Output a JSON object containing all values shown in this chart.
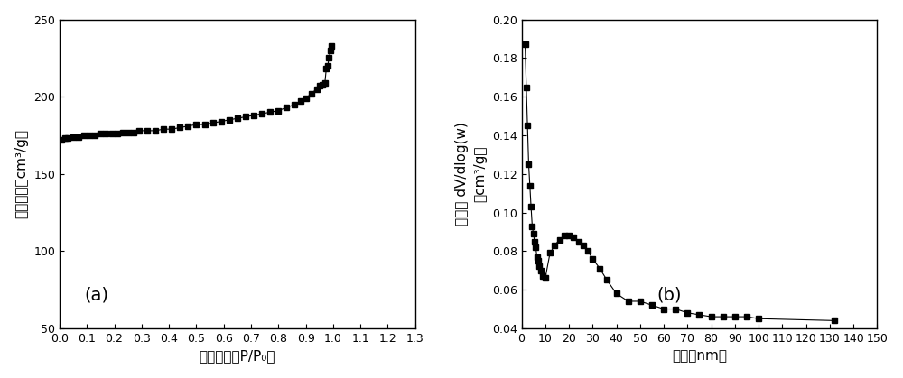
{
  "plot_a": {
    "xlabel": "相对压力（P/P₀）",
    "ylabel": "吸附体积（cm³/g）",
    "label": "(a)",
    "xlim": [
      0.0,
      1.3
    ],
    "ylim": [
      50,
      250
    ],
    "xticks": [
      0.0,
      0.1,
      0.2,
      0.3,
      0.4,
      0.5,
      0.6,
      0.7,
      0.8,
      0.9,
      1.0,
      1.1,
      1.2,
      1.3
    ],
    "yticks": [
      50,
      100,
      150,
      200,
      250
    ],
    "x": [
      0.007,
      0.02,
      0.03,
      0.05,
      0.07,
      0.09,
      0.11,
      0.13,
      0.15,
      0.17,
      0.19,
      0.21,
      0.23,
      0.25,
      0.27,
      0.29,
      0.32,
      0.35,
      0.38,
      0.41,
      0.44,
      0.47,
      0.5,
      0.53,
      0.56,
      0.59,
      0.62,
      0.65,
      0.68,
      0.71,
      0.74,
      0.77,
      0.8,
      0.83,
      0.86,
      0.88,
      0.9,
      0.92,
      0.94,
      0.95,
      0.96,
      0.97,
      0.975,
      0.98,
      0.985,
      0.99,
      0.993
    ],
    "y": [
      172,
      173,
      173,
      174,
      174,
      175,
      175,
      175,
      176,
      176,
      176,
      176,
      177,
      177,
      177,
      178,
      178,
      178,
      179,
      179,
      180,
      181,
      182,
      182,
      183,
      184,
      185,
      186,
      187,
      188,
      189,
      190,
      191,
      193,
      195,
      197,
      199,
      202,
      205,
      207,
      208,
      209,
      218,
      220,
      225,
      230,
      233
    ]
  },
  "plot_b": {
    "xlabel": "孔径（nm）",
    "ylabel_line1": "孔体积 dV/dlog(w)",
    "ylabel_line2": "（cm³/g）",
    "label": "(b)",
    "xlim": [
      0,
      150
    ],
    "ylim": [
      0.04,
      0.2
    ],
    "xticks": [
      0,
      10,
      20,
      30,
      40,
      50,
      60,
      70,
      80,
      90,
      100,
      110,
      120,
      130,
      140,
      150
    ],
    "yticks": [
      0.04,
      0.06,
      0.08,
      0.1,
      0.12,
      0.14,
      0.16,
      0.18,
      0.2
    ],
    "x": [
      1.5,
      2.0,
      2.5,
      3.0,
      3.5,
      4.0,
      4.5,
      5.0,
      5.5,
      6.0,
      6.5,
      7.0,
      7.5,
      8.0,
      9.0,
      10.0,
      12.0,
      14.0,
      16.0,
      18.0,
      20.0,
      22.0,
      24.0,
      26.0,
      28.0,
      30.0,
      33.0,
      36.0,
      40.0,
      45.0,
      50.0,
      55.0,
      60.0,
      65.0,
      70.0,
      75.0,
      80.0,
      85.0,
      90.0,
      95.0,
      100.0,
      132.0
    ],
    "y": [
      0.187,
      0.165,
      0.145,
      0.125,
      0.114,
      0.103,
      0.093,
      0.089,
      0.085,
      0.082,
      0.077,
      0.075,
      0.072,
      0.07,
      0.067,
      0.066,
      0.079,
      0.083,
      0.086,
      0.088,
      0.088,
      0.087,
      0.085,
      0.083,
      0.08,
      0.076,
      0.071,
      0.065,
      0.058,
      0.054,
      0.054,
      0.052,
      0.05,
      0.05,
      0.048,
      0.047,
      0.046,
      0.046,
      0.046,
      0.046,
      0.045,
      0.044
    ]
  },
  "line_color": "#000000",
  "marker": "s",
  "markersize": 4.5,
  "linewidth": 0.8,
  "background_color": "#ffffff",
  "font_color": "#000000",
  "label_fontsize": 14,
  "axis_fontsize": 11,
  "tick_fontsize": 9
}
